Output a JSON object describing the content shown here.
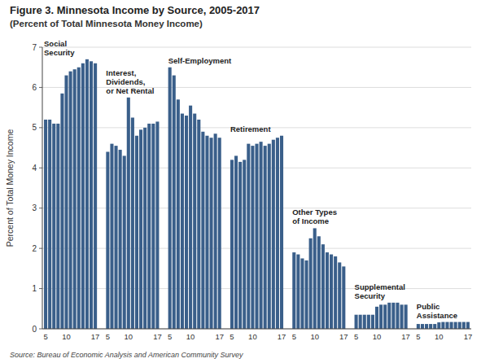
{
  "chart_data": {
    "type": "bar",
    "title": "Figure 3. Minnesota Income by Source, 2005-2017",
    "subtitle": "(Percent of Total Minnesota Money Income)",
    "y_label": "Percent of Total Money Income",
    "source": "Source: Bureau of Economic Analysis and American Community Survey",
    "color": "#3A5F8A",
    "categories": [
      "5",
      null,
      null,
      null,
      null,
      "10",
      null,
      null,
      null,
      null,
      null,
      null,
      "17"
    ],
    "series": [
      {
        "name": "Social\nSecurity",
        "values": [
          5.2,
          5.2,
          5.1,
          5.1,
          5.85,
          6.3,
          6.4,
          6.45,
          6.5,
          6.6,
          6.7,
          6.65,
          6.6
        ]
      },
      {
        "name": "Interest,\nDividends,\nor Net Rental",
        "values": [
          4.4,
          4.6,
          4.55,
          4.45,
          4.3,
          5.75,
          5.25,
          4.8,
          4.95,
          5.0,
          5.1,
          5.1,
          5.15
        ]
      },
      {
        "name": "Self-Employment",
        "values": [
          6.5,
          6.3,
          5.7,
          5.35,
          5.3,
          5.55,
          5.35,
          5.2,
          4.9,
          4.8,
          4.75,
          4.85,
          4.75
        ]
      },
      {
        "name": "Retirement",
        "values": [
          4.2,
          4.3,
          4.15,
          4.2,
          4.6,
          4.55,
          4.6,
          4.65,
          4.55,
          4.6,
          4.7,
          4.75,
          4.8
        ]
      },
      {
        "name": "Other Types\nof Income",
        "values": [
          1.9,
          1.85,
          1.75,
          1.7,
          2.25,
          2.5,
          2.3,
          2.1,
          1.9,
          1.85,
          1.8,
          1.65,
          1.55
        ]
      },
      {
        "name": "Supplemental\nSecurity",
        "values": [
          0.35,
          0.35,
          0.35,
          0.35,
          0.35,
          0.55,
          0.6,
          0.6,
          0.65,
          0.65,
          0.65,
          0.6,
          0.6
        ]
      },
      {
        "name": "Public\nAssistance",
        "values": [
          0.12,
          0.12,
          0.12,
          0.12,
          0.12,
          0.16,
          0.17,
          0.17,
          0.17,
          0.17,
          0.17,
          0.17,
          0.17
        ]
      }
    ],
    "ylim": [
      0,
      7
    ],
    "yticks": [
      0,
      1,
      2,
      3,
      4,
      5,
      6,
      7
    ],
    "grid": true
  }
}
